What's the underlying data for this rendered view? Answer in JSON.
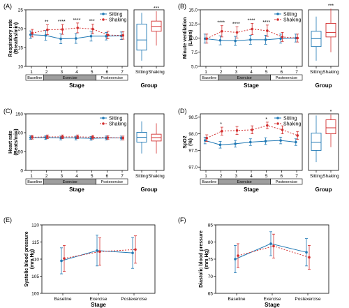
{
  "figure": {
    "width": 500,
    "height": 441
  },
  "colors": {
    "sitting": "#1f78b4",
    "shaking": "#d32f2f",
    "stage_bar": "#9e9e9e",
    "axis": "#000000"
  },
  "chart_data": [
    {
      "id": "A",
      "panel_label": "(A)",
      "type": "line",
      "ylabel": [
        "Respiratory rate",
        "(Breaths/min)"
      ],
      "ylim": [
        10,
        25
      ],
      "yticks": [
        "10",
        "15",
        "20",
        "25"
      ],
      "xlabel": "Stage",
      "x": [
        "1",
        "2",
        "3",
        "4",
        "5",
        "6",
        "7"
      ],
      "stages": [
        "Baseline",
        "Exercise",
        "Postexercise"
      ],
      "legend": [
        "Sitting",
        "Shaking"
      ],
      "series": [
        {
          "name": "Sitting",
          "values": [
            18.4,
            18.2,
            17.3,
            17.4,
            18.0,
            18.0,
            18.1
          ],
          "err": [
            1.0,
            1.3,
            1.3,
            1.3,
            1.3,
            1.0,
            1.0
          ]
        },
        {
          "name": "Shaking",
          "values": [
            18.8,
            19.7,
            19.8,
            20.2,
            19.9,
            18.3,
            18.2
          ],
          "err": [
            1.0,
            1.3,
            1.3,
            1.3,
            1.3,
            1.0,
            1.0
          ]
        }
      ],
      "sig": [
        "",
        "**",
        "****",
        "****",
        "***",
        "",
        ""
      ],
      "box": {
        "xlabel": "Group",
        "categories": [
          "Sitting",
          "Shaking"
        ],
        "sig": [
          "",
          "***"
        ],
        "boxes": [
          {
            "whisker_low": 11.5,
            "q1": 14.3,
            "median": 17.0,
            "q3": 21.2,
            "whisker_high": 24.2
          },
          {
            "whisker_low": 15.5,
            "q1": 19.3,
            "median": 20.6,
            "q3": 22.0,
            "whisker_high": 24.6
          }
        ]
      }
    },
    {
      "id": "B",
      "panel_label": "(B)",
      "type": "line",
      "ylabel": [
        "Minute ventilation",
        "(L/min)"
      ],
      "ylim": [
        5,
        15
      ],
      "yticks": [
        "5.0",
        "7.5",
        "10.0",
        "12.5",
        "15.0"
      ],
      "xlabel": "Stage",
      "x": [
        "1",
        "2",
        "3",
        "4",
        "5",
        "6",
        "7"
      ],
      "stages": [
        "Baseline",
        "Exercise",
        "Postexercise"
      ],
      "legend": [
        "Sitting",
        "Shaking"
      ],
      "series": [
        {
          "name": "Sitting",
          "values": [
            9.9,
            9.6,
            9.5,
            9.7,
            9.7,
            9.9,
            10.0
          ],
          "err": [
            0.8,
            0.8,
            0.8,
            0.8,
            0.8,
            0.8,
            0.7
          ]
        },
        {
          "name": "Shaking",
          "values": [
            9.9,
            11.2,
            11.0,
            11.6,
            11.3,
            10.2,
            10.0
          ],
          "err": [
            0.8,
            1.0,
            1.0,
            1.0,
            1.0,
            0.8,
            0.7
          ]
        }
      ],
      "sig": [
        "",
        "****",
        "****",
        "****",
        "****",
        "",
        ""
      ],
      "box": {
        "xlabel": "Group",
        "categories": [
          "Sitting",
          "Shaking"
        ],
        "sig": [
          "",
          "***"
        ],
        "boxes": [
          {
            "whisker_low": 6.0,
            "q1": 8.5,
            "median": 9.9,
            "q3": 11.2,
            "whisker_high": 13.8
          },
          {
            "whisker_low": 7.5,
            "q1": 10.2,
            "median": 11.0,
            "q3": 12.6,
            "whisker_high": 15.2
          }
        ]
      }
    },
    {
      "id": "C",
      "panel_label": "(C)",
      "type": "line",
      "ylabel": [
        "Heart rate",
        "(Beats/min)"
      ],
      "ylim": [
        0,
        150
      ],
      "yticks": [
        "0",
        "50",
        "100",
        "150"
      ],
      "xlabel": "Stage",
      "x": [
        "1",
        "2",
        "3",
        "4",
        "5",
        "6",
        "7"
      ],
      "stages": [
        "Baseline",
        "Exercise",
        "Postexercise"
      ],
      "legend": [
        "Sitting",
        "Shaking"
      ],
      "series": [
        {
          "name": "Sitting",
          "values": [
            87,
            87,
            86,
            86,
            85,
            86,
            86
          ],
          "err": [
            5,
            5,
            5,
            5,
            5,
            5,
            5
          ]
        },
        {
          "name": "Shaking",
          "values": [
            88,
            89,
            89,
            89,
            88,
            87,
            86
          ],
          "err": [
            5,
            5,
            5,
            5,
            5,
            5,
            5
          ]
        }
      ],
      "sig": [
        "",
        "",
        "",
        "",
        "",
        "",
        ""
      ],
      "box": {
        "xlabel": "Group",
        "categories": [
          "Sitting",
          "Shaking"
        ],
        "sig": [
          "",
          ""
        ],
        "boxes": [
          {
            "whisker_low": 45,
            "q1": 75,
            "median": 88,
            "q3": 101,
            "whisker_high": 130
          },
          {
            "whisker_low": 45,
            "q1": 78,
            "median": 87,
            "q3": 96,
            "whisker_high": 125
          }
        ]
      }
    },
    {
      "id": "D",
      "panel_label": "(D)",
      "type": "line",
      "ylabel": [
        "SpO2",
        "(%)"
      ],
      "ylim": [
        96.9,
        98.6
      ],
      "yticks": [
        "97.0",
        "97.5",
        "98.0",
        "98.5"
      ],
      "xlabel": "Stage",
      "x": [
        "1",
        "2",
        "3",
        "4",
        "5",
        "6",
        "7"
      ],
      "stages": [
        "Baseline",
        "Exercise",
        "Postexercise"
      ],
      "legend": [
        "Sitting",
        "Shaking"
      ],
      "series": [
        {
          "name": "Sitting",
          "values": [
            97.8,
            97.67,
            97.7,
            97.75,
            97.78,
            97.8,
            97.75
          ],
          "err": [
            0.1,
            0.1,
            0.1,
            0.1,
            0.1,
            0.1,
            0.1
          ]
        },
        {
          "name": "Shaking",
          "values": [
            97.87,
            98.08,
            98.1,
            98.12,
            98.25,
            98.12,
            97.95
          ],
          "err": [
            0.1,
            0.12,
            0.12,
            0.12,
            0.1,
            0.12,
            0.12
          ]
        }
      ],
      "sig": [
        "",
        "*",
        "",
        "",
        "*",
        "",
        ""
      ],
      "box": {
        "xlabel": "Group",
        "categories": [
          "Sitting",
          "Shaking"
        ],
        "sig": [
          "",
          "*"
        ],
        "boxes": [
          {
            "whisker_low": 97.15,
            "q1": 97.5,
            "median": 97.75,
            "q3": 98.02,
            "whisker_high": 98.55
          },
          {
            "whisker_low": 97.6,
            "q1": 98.0,
            "median": 98.18,
            "q3": 98.42,
            "whisker_high": 98.58
          }
        ]
      }
    },
    {
      "id": "E",
      "panel_label": "(E)",
      "type": "line",
      "ylabel": [
        "Systolic blood pressure",
        "(mm Hg)"
      ],
      "ylim": [
        100,
        120
      ],
      "yticks": [
        "100",
        "105",
        "110",
        "115",
        "120"
      ],
      "xlabel": "Stage",
      "x": [
        "Baseline",
        "Exercise",
        "Postexercise"
      ],
      "series": [
        {
          "name": "Sitting",
          "values": [
            109.5,
            112.5,
            111.8
          ],
          "err": [
            3.8,
            4.5,
            4.5
          ]
        },
        {
          "name": "Shaking",
          "values": [
            110.2,
            112.2,
            112.8
          ],
          "err": [
            3.8,
            4.0,
            4.0
          ]
        }
      ]
    },
    {
      "id": "F",
      "panel_label": "(F)",
      "type": "line",
      "ylabel": [
        "Diastolic blood pressure",
        "(mm Hg)"
      ],
      "ylim": [
        65,
        85
      ],
      "yticks": [
        "65",
        "70",
        "75",
        "80",
        "85"
      ],
      "xlabel": "Stage",
      "x": [
        "Baseline",
        "Exercise",
        "Postexercise"
      ],
      "series": [
        {
          "name": "Sitting",
          "values": [
            75.0,
            79.5,
            77.0
          ],
          "err": [
            4.0,
            3.5,
            4.0
          ]
        },
        {
          "name": "Shaking",
          "values": [
            76.0,
            78.8,
            75.5
          ],
          "err": [
            3.5,
            3.5,
            3.5
          ]
        }
      ]
    }
  ]
}
